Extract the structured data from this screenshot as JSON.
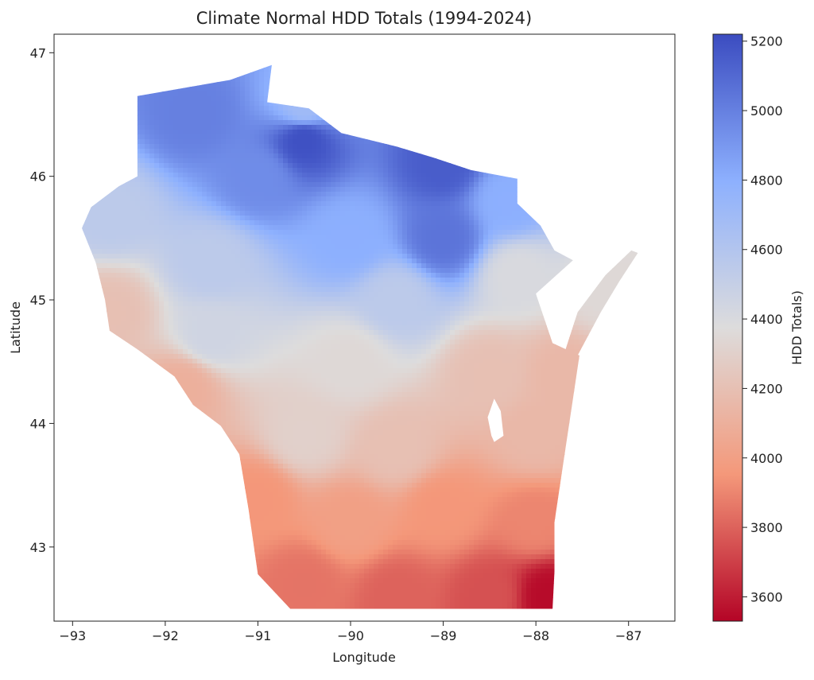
{
  "chart_data": {
    "type": "heatmap",
    "title": "Climate Normal HDD Totals (1994-2024)",
    "xlabel": "Longitude",
    "ylabel": "Latitude",
    "xlim": [
      -93.2,
      -86.5
    ],
    "ylim": [
      42.4,
      47.15
    ],
    "xticks": [
      {
        "value": -93,
        "label": "−93"
      },
      {
        "value": -92,
        "label": "−92"
      },
      {
        "value": -91,
        "label": "−91"
      },
      {
        "value": -90,
        "label": "−90"
      },
      {
        "value": -89,
        "label": "−89"
      },
      {
        "value": -88,
        "label": "−88"
      },
      {
        "value": -87,
        "label": "−87"
      }
    ],
    "yticks": [
      {
        "value": 43,
        "label": "43"
      },
      {
        "value": 44,
        "label": "44"
      },
      {
        "value": 45,
        "label": "45"
      },
      {
        "value": 46,
        "label": "46"
      },
      {
        "value": 47,
        "label": "47"
      }
    ],
    "colorbar": {
      "label": "HDD Totals)",
      "range": [
        3530,
        5220
      ],
      "colormap": "coolwarm_r",
      "ticks": [
        {
          "value": 3600,
          "label": "3600"
        },
        {
          "value": 3800,
          "label": "3800"
        },
        {
          "value": 4000,
          "label": "4000"
        },
        {
          "value": 4200,
          "label": "4200"
        },
        {
          "value": 4400,
          "label": "4400"
        },
        {
          "value": 4600,
          "label": "4600"
        },
        {
          "value": 4800,
          "label": "4800"
        },
        {
          "value": 5000,
          "label": "5000"
        },
        {
          "value": 5200,
          "label": "5200"
        }
      ],
      "stops": [
        "#b40426",
        "#f4987a",
        "#dddcdc",
        "#8db0fe",
        "#3b4cc0"
      ]
    },
    "region_boundary": [
      [
        -90.65,
        42.5
      ],
      [
        -88.03,
        42.5
      ],
      [
        -87.82,
        42.5
      ],
      [
        -87.8,
        42.8
      ],
      [
        -87.8,
        43.2
      ],
      [
        -87.7,
        43.7
      ],
      [
        -87.6,
        44.2
      ],
      [
        -87.53,
        44.55
      ],
      [
        -87.82,
        44.65
      ],
      [
        -88.0,
        45.05
      ],
      [
        -87.6,
        45.32
      ],
      [
        -87.8,
        45.4
      ],
      [
        -87.95,
        45.6
      ],
      [
        -88.2,
        45.78
      ],
      [
        -88.2,
        45.98
      ],
      [
        -88.7,
        46.05
      ],
      [
        -89.1,
        46.15
      ],
      [
        -89.5,
        46.24
      ],
      [
        -90.1,
        46.35
      ],
      [
        -90.45,
        46.55
      ],
      [
        -90.9,
        46.6
      ],
      [
        -90.85,
        46.9
      ],
      [
        -91.3,
        46.78
      ],
      [
        -92.3,
        46.65
      ],
      [
        -92.3,
        46.0
      ],
      [
        -92.5,
        45.92
      ],
      [
        -92.8,
        45.75
      ],
      [
        -92.9,
        45.58
      ],
      [
        -92.75,
        45.3
      ],
      [
        -92.65,
        45.0
      ],
      [
        -92.6,
        44.75
      ],
      [
        -92.3,
        44.6
      ],
      [
        -91.9,
        44.38
      ],
      [
        -91.7,
        44.15
      ],
      [
        -91.4,
        43.98
      ],
      [
        -91.2,
        43.75
      ],
      [
        -91.1,
        43.3
      ],
      [
        -91.0,
        42.78
      ],
      [
        -90.65,
        42.5
      ]
    ],
    "peninsula_boundary": [
      [
        -87.55,
        44.55
      ],
      [
        -87.3,
        44.9
      ],
      [
        -87.1,
        45.15
      ],
      [
        -86.9,
        45.38
      ],
      [
        -86.97,
        45.4
      ],
      [
        -87.25,
        45.2
      ],
      [
        -87.55,
        44.9
      ],
      [
        -87.68,
        44.6
      ],
      [
        -87.55,
        44.55
      ]
    ],
    "lake_winnebago": [
      [
        -88.45,
        43.85
      ],
      [
        -88.35,
        43.9
      ],
      [
        -88.38,
        44.1
      ],
      [
        -88.45,
        44.2
      ],
      [
        -88.52,
        44.05
      ],
      [
        -88.48,
        43.9
      ],
      [
        -88.45,
        43.85
      ]
    ],
    "value_anchors": [
      {
        "lon": -90.5,
        "lat": 46.3,
        "hdd": 5200
      },
      {
        "lon": -89.0,
        "lat": 46.1,
        "hdd": 5150
      },
      {
        "lon": -91.7,
        "lat": 46.5,
        "hdd": 5000
      },
      {
        "lon": -90.5,
        "lat": 46.55,
        "hdd": 4700
      },
      {
        "lon": -91.0,
        "lat": 46.0,
        "hdd": 4950
      },
      {
        "lon": -89.0,
        "lat": 45.5,
        "hdd": 5050
      },
      {
        "lon": -88.3,
        "lat": 45.8,
        "hdd": 4800
      },
      {
        "lon": -92.6,
        "lat": 45.7,
        "hdd": 4550
      },
      {
        "lon": -90.0,
        "lat": 45.5,
        "hdd": 4800
      },
      {
        "lon": -91.5,
        "lat": 45.3,
        "hdd": 4550
      },
      {
        "lon": -89.5,
        "lat": 45.0,
        "hdd": 4550
      },
      {
        "lon": -88.2,
        "lat": 45.2,
        "hdd": 4400
      },
      {
        "lon": -87.2,
        "lat": 45.1,
        "hdd": 4350
      },
      {
        "lon": -92.6,
        "lat": 44.9,
        "hdd": 4200
      },
      {
        "lon": -91.5,
        "lat": 44.7,
        "hdd": 4450
      },
      {
        "lon": -90.0,
        "lat": 44.5,
        "hdd": 4350
      },
      {
        "lon": -88.5,
        "lat": 44.4,
        "hdd": 4200
      },
      {
        "lon": -87.7,
        "lat": 44.4,
        "hdd": 4150
      },
      {
        "lon": -91.8,
        "lat": 44.3,
        "hdd": 4100
      },
      {
        "lon": -90.5,
        "lat": 43.9,
        "hdd": 4300
      },
      {
        "lon": -89.5,
        "lat": 43.8,
        "hdd": 4200
      },
      {
        "lon": -88.0,
        "lat": 43.9,
        "hdd": 4150
      },
      {
        "lon": -91.0,
        "lat": 43.4,
        "hdd": 3950
      },
      {
        "lon": -90.0,
        "lat": 43.2,
        "hdd": 4000
      },
      {
        "lon": -89.0,
        "lat": 43.3,
        "hdd": 3950
      },
      {
        "lon": -88.0,
        "lat": 43.2,
        "hdd": 3900
      },
      {
        "lon": -90.5,
        "lat": 42.7,
        "hdd": 3850
      },
      {
        "lon": -89.5,
        "lat": 42.6,
        "hdd": 3800
      },
      {
        "lon": -88.5,
        "lat": 42.6,
        "hdd": 3750
      },
      {
        "lon": -87.85,
        "lat": 42.6,
        "hdd": 3550
      }
    ]
  }
}
